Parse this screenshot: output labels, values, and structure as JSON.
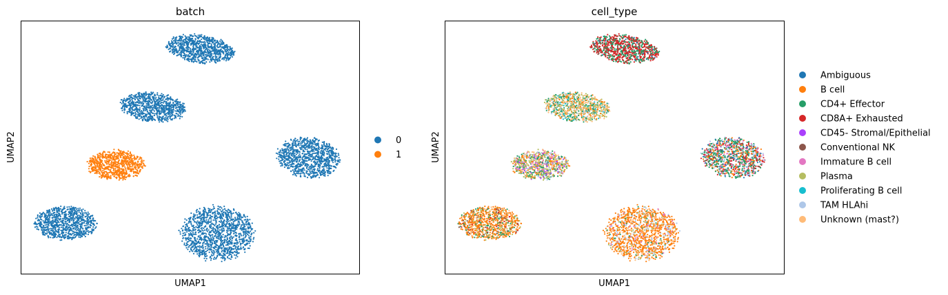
{
  "chart_data": [
    {
      "type": "scatter",
      "title": "batch",
      "xlabel": "UMAP1",
      "ylabel": "UMAP2",
      "grid": false,
      "legend_position": "right",
      "xlim": [
        0,
        100
      ],
      "ylim": [
        0,
        100
      ],
      "clusters": [
        {
          "cx": 53,
          "cy": 89,
          "rx": 10.5,
          "ry": 5.5,
          "angle": -12,
          "n": 900,
          "category": "0"
        },
        {
          "cx": 39,
          "cy": 66,
          "rx": 10,
          "ry": 6,
          "angle": -8,
          "n": 850,
          "category": "0"
        },
        {
          "cx": 28,
          "cy": 43,
          "rx": 8.5,
          "ry": 6,
          "angle": 0,
          "n": 800,
          "category": "1"
        },
        {
          "cx": 85,
          "cy": 46,
          "rx": 9.5,
          "ry": 8,
          "angle": -18,
          "n": 1000,
          "category": "0"
        },
        {
          "cx": 13,
          "cy": 20,
          "rx": 9.5,
          "ry": 6.8,
          "angle": 0,
          "n": 900,
          "category": "0"
        },
        {
          "cx": 58,
          "cy": 16,
          "rx": 11,
          "ry": 11,
          "angle": 0,
          "n": 1300,
          "category": "0"
        }
      ],
      "legend": [
        {
          "label": "0",
          "color": "#1f77b4"
        },
        {
          "label": "1",
          "color": "#ff7f0e"
        }
      ]
    },
    {
      "type": "scatter",
      "title": "cell_type",
      "xlabel": "UMAP1",
      "ylabel": "UMAP2",
      "grid": false,
      "legend_position": "right",
      "xlim": [
        0,
        100
      ],
      "ylim": [
        0,
        100
      ],
      "clusters": [
        {
          "cx": 53,
          "cy": 89,
          "rx": 10.5,
          "ry": 5.5,
          "angle": -12,
          "n": 900,
          "mix": {
            "CD8A+ Exhausted": 0.55,
            "CD4+ Effector": 0.35,
            "Ambiguous": 0.05,
            "Conventional NK": 0.05
          }
        },
        {
          "cx": 39,
          "cy": 66,
          "rx": 10,
          "ry": 6,
          "angle": -8,
          "n": 850,
          "mix": {
            "Plasma": 0.3,
            "Unknown (mast?)": 0.25,
            "CD4+ Effector": 0.2,
            "B cell": 0.1,
            "TAM HLAhi": 0.08,
            "Proliferating B cell": 0.07
          }
        },
        {
          "cx": 28,
          "cy": 43,
          "rx": 8.5,
          "ry": 6,
          "angle": 0,
          "n": 800,
          "mix": {
            "Plasma": 0.25,
            "CD4+ Effector": 0.2,
            "Unknown (mast?)": 0.15,
            "B cell": 0.15,
            "TAM HLAhi": 0.1,
            "Immature B cell": 0.08,
            "CD45- Stromal/Epithelial": 0.07
          }
        },
        {
          "cx": 85,
          "cy": 46,
          "rx": 9.5,
          "ry": 8,
          "angle": -18,
          "n": 1000,
          "mix": {
            "CD4+ Effector": 0.35,
            "CD8A+ Exhausted": 0.2,
            "B cell": 0.15,
            "TAM HLAhi": 0.1,
            "Immature B cell": 0.1,
            "Ambiguous": 0.1
          }
        },
        {
          "cx": 13,
          "cy": 20,
          "rx": 9.5,
          "ry": 6.8,
          "angle": 0,
          "n": 900,
          "mix": {
            "B cell": 0.55,
            "Plasma": 0.15,
            "Unknown (mast?)": 0.1,
            "CD4+ Effector": 0.1,
            "CD8A+ Exhausted": 0.05,
            "Conventional NK": 0.05
          }
        },
        {
          "cx": 58,
          "cy": 16,
          "rx": 11,
          "ry": 11,
          "angle": 0,
          "n": 1300,
          "mix": {
            "B cell": 0.65,
            "TAM HLAhi": 0.12,
            "Unknown (mast?)": 0.1,
            "Immature B cell": 0.05,
            "Plasma": 0.05,
            "CD4+ Effector": 0.03
          }
        }
      ],
      "legend": [
        {
          "label": "Ambiguous",
          "color": "#1f77b4"
        },
        {
          "label": "B cell",
          "color": "#ff7f0e"
        },
        {
          "label": "CD4+ Effector",
          "color": "#279e68"
        },
        {
          "label": "CD8A+ Exhausted",
          "color": "#d62728"
        },
        {
          "label": "CD45- Stromal/Epithelial",
          "color": "#aa40fc"
        },
        {
          "label": "Conventional NK",
          "color": "#8c564b"
        },
        {
          "label": "Immature B cell",
          "color": "#e377c2"
        },
        {
          "label": "Plasma",
          "color": "#b5bd61"
        },
        {
          "label": "Proliferating B cell",
          "color": "#17becf"
        },
        {
          "label": "TAM HLAhi",
          "color": "#aec7e8"
        },
        {
          "label": "Unknown (mast?)",
          "color": "#ffbb78"
        }
      ]
    }
  ]
}
